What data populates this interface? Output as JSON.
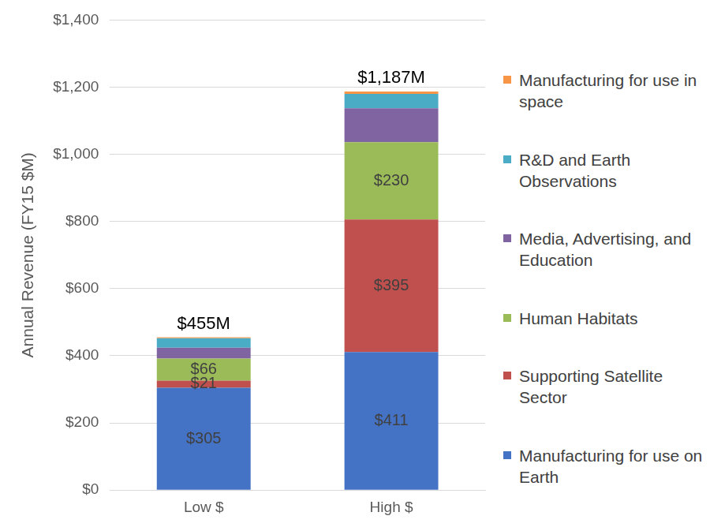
{
  "chart_data": {
    "type": "bar",
    "stacked": true,
    "categories": [
      "Low $",
      "High $"
    ],
    "y_label": "Annual Revenue (FY15 $M)",
    "ylim": [
      0,
      1400
    ],
    "yticks": [
      {
        "value": 0,
        "label": "$0"
      },
      {
        "value": 200,
        "label": "$200"
      },
      {
        "value": 400,
        "label": "$400"
      },
      {
        "value": 600,
        "label": "$600"
      },
      {
        "value": 800,
        "label": "$800"
      },
      {
        "value": 1000,
        "label": "$1,000"
      },
      {
        "value": 1200,
        "label": "$1,200"
      },
      {
        "value": 1400,
        "label": "$1,400"
      }
    ],
    "grid": true,
    "legend": "right",
    "data_labels": true,
    "series": [
      {
        "name": "Manufacturing for use on Earth",
        "color": "#4472c4",
        "values": [
          305,
          411
        ],
        "value_labels": [
          "$305",
          "$411"
        ]
      },
      {
        "name": "Supporting Satellite Sector",
        "color": "#c0504d",
        "values": [
          21,
          395
        ],
        "value_labels": [
          "$21",
          "$395"
        ]
      },
      {
        "name": "Human Habitats",
        "color": "#9bbb59",
        "values": [
          66,
          230
        ],
        "value_labels": [
          "$66",
          "$230"
        ]
      },
      {
        "name": "Media, Advertising, and Education",
        "color": "#8064a2",
        "values": [
          32,
          101
        ]
      },
      {
        "name": "R&D and Earth Observations",
        "color": "#4bacc6",
        "values": [
          28,
          43
        ]
      },
      {
        "name": "Manufacturing for use in space",
        "color": "#f79646",
        "values": [
          3,
          7
        ]
      }
    ],
    "annotations": [
      {
        "category": "Low $",
        "value": 455,
        "label": "$455M"
      },
      {
        "category": "High $",
        "value": 1187,
        "label": "$1,187M"
      }
    ]
  }
}
